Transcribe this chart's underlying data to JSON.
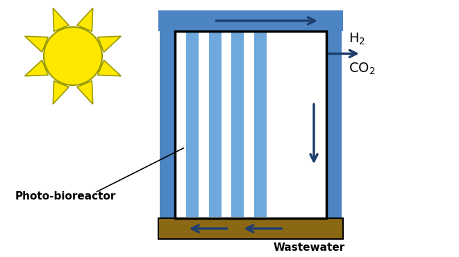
{
  "bg_color": "#ffffff",
  "blue_dark": "#1f3f6e",
  "blue_mid": "#4d84c4",
  "blue_light": "#6fa8dc",
  "brown": "#8B6914",
  "sun_yellow": "#FFE800",
  "sun_outline": "#999900",
  "figsize": [
    6.61,
    3.71
  ],
  "dpi": 100,
  "label_photo": "Photo-bioreactor",
  "label_waste": "Wastewater"
}
